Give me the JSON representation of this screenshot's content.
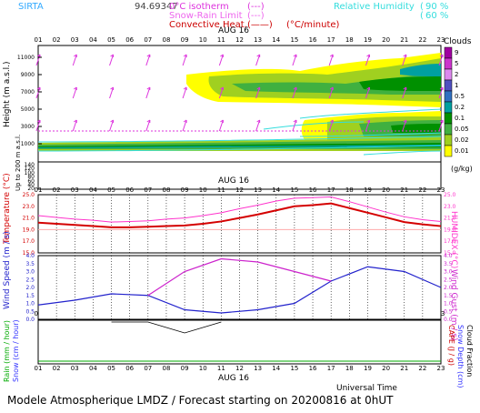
{
  "header": {
    "station": "SIRTA",
    "coords": "94.69347",
    "legend_isotherm": "0°C isotherm",
    "legend_snow_rain": "Snow-Rain Limit",
    "legend_convective": "Convective Heat.",
    "legend_convective_unit": "(°C/minute)",
    "legend_rh": "Relative Humidity",
    "rh_90": "90 %",
    "rh_60": "60 %"
  },
  "footer": {
    "universal_time": "Universal Time",
    "model_title": "Modele Atmospherique LMDZ / Forecast starting on 20200816 at 0hUT"
  },
  "colors": {
    "temperature": "#d40000",
    "humidex": "#ff33cc",
    "wind_speed": "#2222cc",
    "wind_gust": "#cc22cc",
    "rain": "#00aa00",
    "snow": "#3333ff",
    "cape": "#cc0000",
    "cloud_cyan": "#33dddd",
    "axis_magenta": "#cc00cc"
  },
  "hours": [
    "01",
    "02",
    "03",
    "04",
    "05",
    "06",
    "07",
    "08",
    "09",
    "10",
    "11",
    "12",
    "13",
    "14",
    "15",
    "16",
    "17",
    "18",
    "19",
    "20",
    "21",
    "22",
    "23"
  ],
  "date_label": "AUG 16",
  "clouds_legend": {
    "title": "Clouds",
    "unit": "(g/kg)",
    "levels": [
      "9",
      "5",
      "2",
      "1",
      "0.5",
      "0.2",
      "0.1",
      "0.05",
      "0.02",
      "0.01"
    ],
    "colors": [
      "#a000a0",
      "#cc33cc",
      "#dd88ee",
      "#5050c0",
      "#3070c0",
      "#00a0a0",
      "#009000",
      "#40b040",
      "#a0d020",
      "#ffff00"
    ]
  },
  "chart_data": [
    {
      "type": "heatmap",
      "ylabel": "Height (m a.s.l.)",
      "ylabel_sub": "Up to 200 m a.s.l.",
      "y_ticks": [
        "11000",
        "9000",
        "7000",
        "5000",
        "3000",
        "1000",
        "140",
        "120",
        "100",
        "80",
        "60",
        "40",
        "20"
      ],
      "note": "cloud water content (g/kg) with wind arrows"
    },
    {
      "type": "line",
      "ylabel": "Temperature (°C)",
      "y2label": "HUMIDEX (°C)",
      "ylim": [
        15,
        25
      ],
      "y_ticks": [
        "25.0",
        "23.0",
        "21.0",
        "19.0",
        "17.0",
        "15.0"
      ],
      "x": [
        "01",
        "02",
        "03",
        "04",
        "05",
        "06",
        "07",
        "08",
        "09",
        "10",
        "11",
        "12",
        "13",
        "14",
        "15",
        "16",
        "17",
        "18",
        "19",
        "20",
        "21",
        "22",
        "23"
      ],
      "series": [
        {
          "name": "Temperature",
          "values": [
            20.2,
            20.0,
            19.8,
            19.6,
            19.4,
            19.4,
            19.5,
            19.6,
            19.7,
            20.0,
            20.4,
            21.0,
            21.6,
            22.3,
            23.0,
            23.2,
            23.5,
            22.7,
            21.9,
            21.1,
            20.3,
            19.9,
            19.6
          ]
        },
        {
          "name": "HUMIDEX",
          "values": [
            21.4,
            21.1,
            20.8,
            20.6,
            20.3,
            20.4,
            20.5,
            20.8,
            21.0,
            21.4,
            21.9,
            22.6,
            23.2,
            23.9,
            24.4,
            24.5,
            24.6,
            23.8,
            22.9,
            22.0,
            21.2,
            20.7,
            20.4
          ]
        }
      ]
    },
    {
      "type": "line",
      "ylabel": "Wind Speed (m / s)",
      "y2label": "Wind Gust (m / s)",
      "ylim": [
        0,
        4
      ],
      "y_ticks": [
        "4.0",
        "3.5",
        "3.0",
        "2.5",
        "2.0",
        "1.5",
        "1.0",
        "0.5",
        "0.0"
      ],
      "x": [
        "01",
        "03",
        "05",
        "07",
        "09",
        "11",
        "13",
        "15",
        "17",
        "19",
        "21",
        "23"
      ],
      "series": [
        {
          "name": "Wind Speed",
          "values": [
            0.9,
            1.2,
            1.6,
            1.5,
            0.6,
            0.4,
            0.6,
            1.0,
            2.4,
            3.3,
            3.0,
            2.0
          ]
        },
        {
          "name": "Wind Gust",
          "values": [
            null,
            null,
            null,
            1.5,
            3.0,
            3.8,
            3.6,
            3.0,
            2.4,
            null,
            null,
            null
          ]
        }
      ]
    },
    {
      "type": "line",
      "ylabel": "Rain (mm / hour)",
      "ylabel2": "Snow (cm / hour)",
      "y2label": "CAPE (J / g)",
      "y2label2": "Snow Depth (cm)",
      "y2label3": "Cloud Fraction",
      "x": [
        "01",
        "03",
        "05",
        "07",
        "09",
        "11"
      ],
      "series": [
        {
          "name": "CAPE",
          "values": [
            null,
            null,
            0,
            0,
            -1,
            0
          ]
        }
      ]
    }
  ]
}
